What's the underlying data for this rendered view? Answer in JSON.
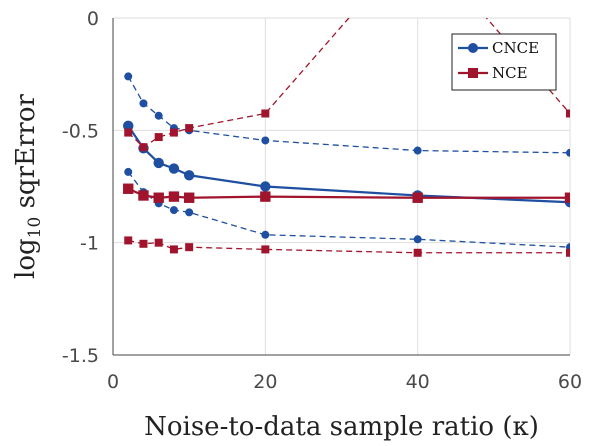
{
  "chart_data": {
    "type": "line",
    "title": "",
    "xlabel": "Noise-to-data sample ratio (κ)",
    "ylabel_base": "log",
    "ylabel_sub": "10",
    "ylabel_rest": " sqrError",
    "xlim": [
      0,
      60
    ],
    "ylim": [
      -1.5,
      0
    ],
    "xticks": [
      0,
      20,
      40,
      60
    ],
    "xtick_labels": [
      "0",
      "20",
      "40",
      "60"
    ],
    "yticks": [
      0,
      -0.5,
      -1,
      -1.5
    ],
    "ytick_labels": [
      "0",
      "-0.5",
      "-1",
      "-1.5"
    ],
    "grid": true,
    "legend_position": "top-right",
    "x": [
      2,
      4,
      6,
      8,
      10,
      20,
      40,
      60
    ],
    "series": [
      {
        "name": "CNCE",
        "color": "#1f4fa0",
        "marker": "circle",
        "mean": [
          -0.48,
          -0.58,
          -0.645,
          -0.67,
          -0.7,
          -0.75,
          -0.79,
          -0.82
        ],
        "upper": [
          -0.26,
          -0.38,
          -0.435,
          -0.49,
          -0.5,
          -0.545,
          -0.59,
          -0.6
        ],
        "lower": [
          -0.685,
          -0.775,
          -0.825,
          -0.855,
          -0.865,
          -0.965,
          -0.985,
          -1.02
        ]
      },
      {
        "name": "NCE",
        "color": "#a0152d",
        "marker": "square",
        "mean": [
          -0.76,
          -0.79,
          -0.8,
          -0.795,
          -0.8,
          -0.795,
          -0.8,
          -0.8
        ],
        "upper": [
          -0.51,
          -0.575,
          -0.53,
          -0.51,
          -0.49,
          -0.425,
          0.35,
          -0.425
        ],
        "lower": [
          -0.99,
          -1.005,
          -1.0,
          -1.03,
          -1.02,
          -1.03,
          -1.045,
          -1.045
        ]
      }
    ]
  }
}
